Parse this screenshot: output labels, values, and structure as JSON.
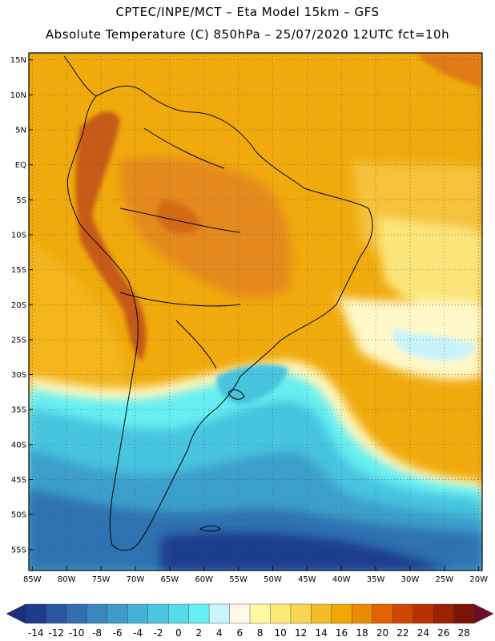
{
  "header": {
    "line1": "CPTEC/INPE/MCT –  Eta Model 15km – GFS",
    "line2": "Absolute Temperature (C) 850hPa – 25/07/2020 12UTC fct=10h"
  },
  "map": {
    "lat_labels": [
      "15N",
      "10N",
      "5N",
      "EQ",
      "5S",
      "10S",
      "15S",
      "20S",
      "25S",
      "30S",
      "35S",
      "40S",
      "45S",
      "50S",
      "55S"
    ],
    "lon_labels": [
      "85W",
      "80W",
      "75W",
      "70W",
      "65W",
      "60W",
      "55W",
      "50W",
      "45W",
      "40W",
      "35W",
      "30W",
      "25W",
      "20W"
    ],
    "lat_range": [
      -58,
      16
    ],
    "lon_range": [
      -85.5,
      -19.5
    ]
  },
  "colorbar": {
    "labels": [
      "-14",
      "-12",
      "-10",
      "-8",
      "-6",
      "-4",
      "-2",
      "0",
      "2",
      "4",
      "6",
      "8",
      "10",
      "12",
      "14",
      "16",
      "18",
      "20",
      "22",
      "24",
      "26",
      "28"
    ],
    "colors": [
      "#1f3c8c",
      "#2a56a0",
      "#336fb0",
      "#3b86bf",
      "#3f9bc9",
      "#46b1d6",
      "#4cc6e0",
      "#55dbe9",
      "#66f0f2",
      "#c9f5fb",
      "#fff8e6",
      "#fff8a3",
      "#fce975",
      "#f8d650",
      "#f1be2a",
      "#f0a800",
      "#ec8b00",
      "#e26200",
      "#d04600",
      "#b83200",
      "#9b2100",
      "#7a1406"
    ],
    "low_color": "#1d2f7a",
    "high_color": "#6e0b2a"
  },
  "fields": {
    "ocean_hot": "#f0aa0c",
    "land_hot": "#e48a1e",
    "andes": "#c65a14"
  }
}
